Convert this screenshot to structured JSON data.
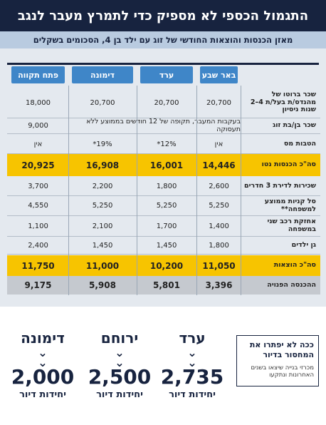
{
  "header": {
    "title": "התגמול הכספי לא מספיק כדי לתמרץ מעבר לנגב",
    "subtitle": "מאזן הכנסות והוצאות החודשי של זוג עם ילד בן 4, הסכומים בשקלים"
  },
  "table": {
    "columns": [
      "באר שבע",
      "ערד",
      "דימונה",
      "פתח תקווה"
    ],
    "rows": [
      {
        "label": "שכר ברוטו של מהנדס/ת בעל/ת 4–2 שנות ניסיון",
        "cells": [
          "20,700",
          "20,700",
          "20,700",
          "18,000"
        ]
      },
      {
        "label": "שכר בן/בת זוג",
        "cells": [
          "בעקבות המעבר, תקופה של 12 חודשים בממוצע ללא תעסוקה",
          "9,000"
        ]
      },
      {
        "label": "הטבות מס",
        "cells": [
          "אין",
          "12%*",
          "19%*",
          "אין"
        ]
      },
      {
        "label": "סה\"כ הכנסות נטו",
        "cells": [
          "14,446",
          "16,001",
          "16,908",
          "20,925"
        ]
      },
      {
        "label": "שכירות לדירת 3 חדרים",
        "cells": [
          "2,600",
          "1,800",
          "2,200",
          "3,700"
        ]
      },
      {
        "label": "סל קניות ממוצע למשפחה**",
        "cells": [
          "5,250",
          "5,250",
          "5,250",
          "4,550"
        ]
      },
      {
        "label": "אחזקת רכב שני במשפחה",
        "cells": [
          "1,400",
          "1,700",
          "2,100",
          "1,100"
        ]
      },
      {
        "label": "גן ילדים",
        "cells": [
          "1,800",
          "1,450",
          "1,450",
          "2,400"
        ]
      },
      {
        "label": "סה\"כ הוצאות",
        "cells": [
          "11,050",
          "10,200",
          "11,000",
          "11,750"
        ]
      },
      {
        "label": "ההכנסה הפנויה",
        "cells": [
          "3,396",
          "5,801",
          "5,908",
          "9,175"
        ]
      }
    ]
  },
  "box": {
    "title": "ככה לא יפתרו את המחסור בדיור",
    "text": "מכרזי בנייה שיצאו בשנים האחרונות ונתקעו"
  },
  "cities": [
    {
      "name": "ערד",
      "number": "2,735",
      "unit": "יחידות דיור"
    },
    {
      "name": "ירוחם",
      "number": "2,500",
      "unit": "יחידות דיור"
    },
    {
      "name": "דימונה",
      "number": "2,000",
      "unit": "יחידות דיור"
    }
  ]
}
